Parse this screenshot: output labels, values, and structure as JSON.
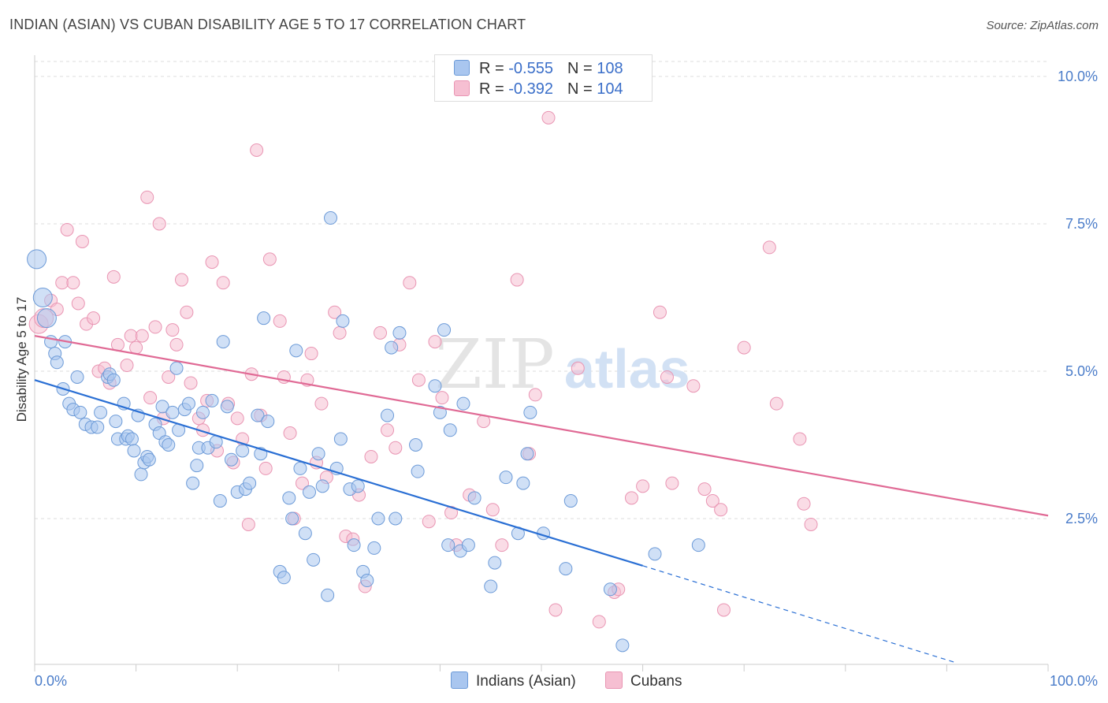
{
  "header": {
    "title": "INDIAN (ASIAN) VS CUBAN DISABILITY AGE 5 TO 17 CORRELATION CHART",
    "source": "Source: ZipAtlas.com"
  },
  "legend": {
    "rows": [
      {
        "r_label": "R =",
        "r_value": "-0.555",
        "n_label": "N =",
        "n_value": "108"
      },
      {
        "r_label": "R =",
        "r_value": "-0.392",
        "n_label": "N =",
        "n_value": "104"
      }
    ]
  },
  "bottom_legend": {
    "series1": "Indians (Asian)",
    "series2": "Cubans"
  },
  "watermark": {
    "part1": "ZIP",
    "part2": "atlas"
  },
  "colors": {
    "blue_fill": "#a9c6ef",
    "blue_stroke": "#6d9bd8",
    "blue_line": "#2a6fd4",
    "pink_fill": "#f6bfd2",
    "pink_stroke": "#e995b3",
    "pink_line": "#e06a95",
    "axis_text": "#4a7cc9",
    "grid": "#dddddd"
  },
  "chart_data": {
    "type": "scatter",
    "title": "INDIAN (ASIAN) VS CUBAN DISABILITY AGE 5 TO 17 CORRELATION CHART",
    "xlabel": "",
    "ylabel": "Disability Age 5 to 17",
    "xlim": [
      0,
      100
    ],
    "ylim": [
      0,
      10.5
    ],
    "x_tick_labels": [
      "0.0%",
      "100.0%"
    ],
    "y_ticks": [
      2.5,
      5.0,
      7.5,
      10.0
    ],
    "y_tick_labels": [
      "2.5%",
      "5.0%",
      "7.5%",
      "10.0%"
    ],
    "series": [
      {
        "name": "Indians (Asian)",
        "r": -0.555,
        "n": 108,
        "trend": {
          "x0": 0,
          "y0": 4.85,
          "x1": 60,
          "y1": 1.7,
          "dashed_to_x": 91,
          "dashed_to_y": 0.05
        },
        "points": [
          [
            0.2,
            6.9,
            2
          ],
          [
            0.8,
            6.25,
            2
          ],
          [
            1.2,
            5.9,
            2
          ],
          [
            1.6,
            5.5,
            1
          ],
          [
            2.0,
            5.3,
            1
          ],
          [
            2.2,
            5.15,
            1
          ],
          [
            2.8,
            4.7,
            1
          ],
          [
            3.0,
            5.5,
            1
          ],
          [
            3.4,
            4.45,
            1
          ],
          [
            3.8,
            4.35,
            1
          ],
          [
            4.2,
            4.9,
            1
          ],
          [
            4.5,
            4.3,
            1
          ],
          [
            5.0,
            4.1,
            1
          ],
          [
            5.6,
            4.05,
            1
          ],
          [
            6.2,
            4.05,
            1
          ],
          [
            6.5,
            4.3,
            1
          ],
          [
            7.2,
            4.9,
            1
          ],
          [
            7.4,
            4.95,
            1
          ],
          [
            7.8,
            4.85,
            1
          ],
          [
            8.0,
            4.15,
            1
          ],
          [
            8.2,
            3.85,
            1
          ],
          [
            8.8,
            4.45,
            1
          ],
          [
            9.0,
            3.85,
            1
          ],
          [
            9.2,
            3.9,
            1
          ],
          [
            9.6,
            3.85,
            1
          ],
          [
            9.8,
            3.65,
            1
          ],
          [
            10.2,
            4.25,
            1
          ],
          [
            10.5,
            3.25,
            1
          ],
          [
            10.8,
            3.45,
            1
          ],
          [
            11.1,
            3.55,
            1
          ],
          [
            11.3,
            3.5,
            1
          ],
          [
            11.9,
            4.1,
            1
          ],
          [
            12.3,
            3.95,
            1
          ],
          [
            12.6,
            4.4,
            1
          ],
          [
            12.9,
            3.8,
            1
          ],
          [
            13.2,
            3.75,
            1
          ],
          [
            13.6,
            4.3,
            1
          ],
          [
            14.0,
            5.05,
            1
          ],
          [
            14.2,
            4.0,
            1
          ],
          [
            14.8,
            4.35,
            1
          ],
          [
            15.2,
            4.45,
            1
          ],
          [
            15.6,
            3.1,
            1
          ],
          [
            16.0,
            3.4,
            1
          ],
          [
            16.2,
            3.7,
            1
          ],
          [
            16.6,
            4.3,
            1
          ],
          [
            17.1,
            3.7,
            1
          ],
          [
            17.5,
            4.5,
            1
          ],
          [
            17.9,
            3.8,
            1
          ],
          [
            18.3,
            2.8,
            1
          ],
          [
            18.6,
            5.5,
            1
          ],
          [
            19.0,
            4.4,
            1
          ],
          [
            19.4,
            3.5,
            1
          ],
          [
            20.0,
            2.95,
            1
          ],
          [
            20.5,
            3.65,
            1
          ],
          [
            20.8,
            3.0,
            1
          ],
          [
            21.2,
            3.1,
            1
          ],
          [
            22.0,
            4.25,
            1
          ],
          [
            22.3,
            3.6,
            1
          ],
          [
            22.6,
            5.9,
            1
          ],
          [
            23.0,
            4.15,
            1
          ],
          [
            24.2,
            1.6,
            1
          ],
          [
            24.6,
            1.5,
            1
          ],
          [
            25.1,
            2.85,
            1
          ],
          [
            25.4,
            2.5,
            1
          ],
          [
            25.8,
            5.35,
            1
          ],
          [
            26.2,
            3.35,
            1
          ],
          [
            26.7,
            2.25,
            1
          ],
          [
            27.1,
            2.95,
            1
          ],
          [
            27.5,
            1.8,
            1
          ],
          [
            28.0,
            3.6,
            1
          ],
          [
            28.4,
            3.05,
            1
          ],
          [
            28.9,
            1.2,
            1
          ],
          [
            29.2,
            7.6,
            1
          ],
          [
            29.8,
            3.35,
            1
          ],
          [
            30.2,
            3.85,
            1
          ],
          [
            30.4,
            5.85,
            1
          ],
          [
            31.1,
            3.0,
            1
          ],
          [
            31.5,
            2.05,
            1
          ],
          [
            31.9,
            3.05,
            1
          ],
          [
            32.4,
            1.6,
            1
          ],
          [
            32.8,
            1.45,
            1
          ],
          [
            33.5,
            2.0,
            1
          ],
          [
            33.9,
            2.5,
            1
          ],
          [
            34.8,
            4.25,
            1
          ],
          [
            35.2,
            5.4,
            1
          ],
          [
            35.6,
            2.5,
            1
          ],
          [
            36.0,
            5.65,
            1
          ],
          [
            37.6,
            3.75,
            1
          ],
          [
            37.8,
            3.3,
            1
          ],
          [
            39.5,
            4.75,
            1
          ],
          [
            40.0,
            4.3,
            1
          ],
          [
            40.4,
            5.7,
            1
          ],
          [
            40.8,
            2.05,
            1
          ],
          [
            41.0,
            4.0,
            1
          ],
          [
            42.0,
            1.95,
            1
          ],
          [
            42.3,
            4.45,
            1
          ],
          [
            42.8,
            2.05,
            1
          ],
          [
            43.4,
            2.85,
            1
          ],
          [
            45.0,
            1.35,
            1
          ],
          [
            45.4,
            1.75,
            1
          ],
          [
            46.5,
            3.2,
            1
          ],
          [
            47.7,
            2.25,
            1
          ],
          [
            48.2,
            3.1,
            1
          ],
          [
            48.6,
            3.6,
            1
          ],
          [
            48.9,
            4.3,
            1
          ],
          [
            50.2,
            2.25,
            1
          ],
          [
            52.4,
            1.65,
            1
          ],
          [
            52.9,
            2.8,
            1
          ],
          [
            56.8,
            1.3,
            1
          ],
          [
            58.0,
            0.35,
            1
          ],
          [
            61.2,
            1.9,
            1
          ],
          [
            65.5,
            2.05,
            1
          ]
        ]
      },
      {
        "name": "Cubans",
        "r": -0.392,
        "n": 104,
        "trend": {
          "x0": 0,
          "y0": 5.6,
          "x1": 100,
          "y1": 2.55
        },
        "points": [
          [
            0.4,
            5.8,
            2
          ],
          [
            0.9,
            5.9,
            2
          ],
          [
            1.6,
            6.2,
            1
          ],
          [
            2.2,
            6.05,
            1
          ],
          [
            2.7,
            6.5,
            1
          ],
          [
            3.2,
            7.4,
            1
          ],
          [
            3.8,
            6.5,
            1
          ],
          [
            4.3,
            6.15,
            1
          ],
          [
            4.7,
            7.2,
            1
          ],
          [
            5.1,
            5.8,
            1
          ],
          [
            5.8,
            5.9,
            1
          ],
          [
            6.3,
            5.0,
            1
          ],
          [
            6.9,
            5.05,
            1
          ],
          [
            7.4,
            4.8,
            1
          ],
          [
            7.8,
            6.6,
            1
          ],
          [
            8.2,
            5.45,
            1
          ],
          [
            9.1,
            5.1,
            1
          ],
          [
            9.5,
            5.6,
            1
          ],
          [
            10.0,
            5.4,
            1
          ],
          [
            10.6,
            5.6,
            1
          ],
          [
            11.1,
            7.95,
            1
          ],
          [
            11.4,
            4.55,
            1
          ],
          [
            11.9,
            5.75,
            1
          ],
          [
            12.3,
            7.5,
            1
          ],
          [
            12.7,
            4.2,
            1
          ],
          [
            13.2,
            4.9,
            1
          ],
          [
            13.6,
            5.7,
            1
          ],
          [
            14.0,
            5.45,
            1
          ],
          [
            14.5,
            6.55,
            1
          ],
          [
            15.0,
            6.0,
            1
          ],
          [
            15.4,
            4.8,
            1
          ],
          [
            16.2,
            4.2,
            1
          ],
          [
            16.6,
            4.0,
            1
          ],
          [
            17.0,
            4.5,
            1
          ],
          [
            17.5,
            6.85,
            1
          ],
          [
            18.0,
            3.65,
            1
          ],
          [
            18.6,
            6.5,
            1
          ],
          [
            19.1,
            4.45,
            1
          ],
          [
            19.6,
            3.45,
            1
          ],
          [
            20.0,
            4.2,
            1
          ],
          [
            20.5,
            3.85,
            1
          ],
          [
            21.1,
            2.4,
            1
          ],
          [
            21.4,
            4.95,
            1
          ],
          [
            21.9,
            8.75,
            1
          ],
          [
            22.3,
            4.25,
            1
          ],
          [
            22.8,
            3.35,
            1
          ],
          [
            23.2,
            6.9,
            1
          ],
          [
            24.2,
            5.85,
            1
          ],
          [
            24.6,
            4.9,
            1
          ],
          [
            25.2,
            3.95,
            1
          ],
          [
            25.6,
            2.5,
            1
          ],
          [
            26.4,
            3.1,
            1
          ],
          [
            26.9,
            4.85,
            1
          ],
          [
            27.3,
            5.3,
            1
          ],
          [
            27.8,
            3.45,
            1
          ],
          [
            28.3,
            4.45,
            1
          ],
          [
            28.8,
            3.2,
            1
          ],
          [
            29.6,
            6.0,
            1
          ],
          [
            30.1,
            5.65,
            1
          ],
          [
            30.7,
            2.2,
            1
          ],
          [
            31.4,
            2.15,
            1
          ],
          [
            32.0,
            2.9,
            1
          ],
          [
            32.6,
            1.35,
            1
          ],
          [
            33.2,
            3.55,
            1
          ],
          [
            34.1,
            5.65,
            1
          ],
          [
            34.8,
            4.0,
            1
          ],
          [
            35.6,
            3.7,
            1
          ],
          [
            36.0,
            5.45,
            1
          ],
          [
            37.0,
            6.5,
            1
          ],
          [
            37.9,
            4.85,
            1
          ],
          [
            38.9,
            2.45,
            1
          ],
          [
            39.5,
            5.5,
            1
          ],
          [
            40.2,
            4.55,
            1
          ],
          [
            41.1,
            2.6,
            1
          ],
          [
            41.6,
            2.05,
            1
          ],
          [
            42.9,
            2.9,
            1
          ],
          [
            44.3,
            4.15,
            1
          ],
          [
            45.2,
            2.65,
            1
          ],
          [
            46.1,
            2.05,
            1
          ],
          [
            47.6,
            6.55,
            1
          ],
          [
            48.8,
            3.6,
            1
          ],
          [
            49.4,
            4.6,
            1
          ],
          [
            50.7,
            9.3,
            1
          ],
          [
            51.4,
            0.95,
            1
          ],
          [
            53.6,
            5.05,
            1
          ],
          [
            55.7,
            0.75,
            1
          ],
          [
            57.2,
            1.25,
            1
          ],
          [
            57.6,
            1.3,
            1
          ],
          [
            58.9,
            2.85,
            1
          ],
          [
            60.0,
            3.05,
            1
          ],
          [
            61.7,
            6.0,
            1
          ],
          [
            62.4,
            4.9,
            1
          ],
          [
            62.9,
            3.1,
            1
          ],
          [
            65.0,
            4.75,
            1
          ],
          [
            66.1,
            3.0,
            1
          ],
          [
            66.9,
            2.8,
            1
          ],
          [
            67.7,
            2.65,
            1
          ],
          [
            68.0,
            0.95,
            1
          ],
          [
            70.0,
            5.4,
            1
          ],
          [
            72.5,
            7.1,
            1
          ],
          [
            73.2,
            4.45,
            1
          ],
          [
            75.5,
            3.85,
            1
          ],
          [
            75.9,
            2.75,
            1
          ],
          [
            76.6,
            2.4,
            1
          ]
        ]
      }
    ]
  }
}
